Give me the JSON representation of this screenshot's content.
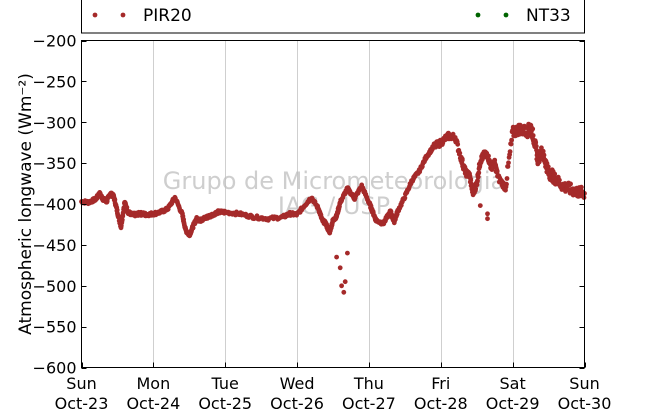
{
  "chart_data": {
    "type": "scatter",
    "ylabel": "Atmospheric longwave (Wm⁻²)",
    "ylim": [
      -600,
      -200
    ],
    "yticks": [
      -600,
      -550,
      -500,
      -450,
      -400,
      -350,
      -300,
      -250,
      -200
    ],
    "xlim": [
      0,
      7
    ],
    "xticks": [
      {
        "day": "Sun",
        "date": "Oct-23"
      },
      {
        "day": "Mon",
        "date": "Oct-24"
      },
      {
        "day": "Tue",
        "date": "Oct-25"
      },
      {
        "day": "Wed",
        "date": "Oct-26"
      },
      {
        "day": "Thu",
        "date": "Oct-27"
      },
      {
        "day": "Fri",
        "date": "Oct-28"
      },
      {
        "day": "Sat",
        "date": "Oct-29"
      },
      {
        "day": "Sun",
        "date": "Oct-30"
      }
    ],
    "grid": "vertical",
    "legend_position": "top",
    "watermark": [
      "Grupo de Micrometeorologia",
      "IAG / USP"
    ],
    "series": [
      {
        "name": "PIR20",
        "color": "#a52a2a",
        "x": [
          0.0,
          0.1,
          0.2,
          0.25,
          0.3,
          0.35,
          0.4,
          0.45,
          0.5,
          0.55,
          0.6,
          0.65,
          0.7,
          0.75,
          0.8,
          0.85,
          0.9,
          1.0,
          1.1,
          1.2,
          1.3,
          1.4,
          1.45,
          1.5,
          1.55,
          1.6,
          1.65,
          1.7,
          1.75,
          1.8,
          1.9,
          2.0,
          2.2,
          2.4,
          2.6,
          2.8,
          2.9,
          3.0,
          3.1,
          3.2,
          3.3,
          3.35,
          3.4,
          3.45,
          3.5,
          3.55,
          3.6,
          3.7,
          3.8,
          3.9,
          4.0,
          4.05,
          4.1,
          4.2,
          4.3,
          4.35,
          4.4,
          4.5,
          4.6,
          4.7,
          4.8,
          4.9,
          5.0,
          5.1,
          5.2,
          5.3,
          5.35,
          5.4,
          5.45,
          5.5,
          5.55,
          5.6,
          5.65,
          5.7,
          5.75,
          5.8,
          5.9,
          6.0,
          6.1,
          6.2,
          6.25,
          6.3,
          6.35,
          6.4,
          6.45,
          6.5,
          6.55,
          6.6,
          6.7,
          6.8,
          6.9,
          7.0
        ],
        "y": [
          -397,
          -398,
          -394,
          -387,
          -394,
          -397,
          -387,
          -391,
          -410,
          -428,
          -398,
          -410,
          -413,
          -413,
          -412,
          -412,
          -413,
          -412,
          -410,
          -406,
          -392,
          -412,
          -432,
          -438,
          -428,
          -418,
          -420,
          -418,
          -416,
          -414,
          -410,
          -410,
          -412,
          -416,
          -418,
          -416,
          -412,
          -413,
          -402,
          -392,
          -406,
          -420,
          -424,
          -435,
          -420,
          -415,
          -398,
          -381,
          -393,
          -378,
          -398,
          -409,
          -420,
          -424,
          -409,
          -422,
          -409,
          -391,
          -371,
          -360,
          -342,
          -330,
          -325,
          -317,
          -318,
          -350,
          -362,
          -365,
          -388,
          -375,
          -347,
          -340,
          -340,
          -355,
          -350,
          -368,
          -380,
          -313,
          -308,
          -312,
          -305,
          -322,
          -345,
          -337,
          -346,
          -362,
          -365,
          -370,
          -378,
          -382,
          -385,
          -387
        ],
        "outliers": [
          [
            3.55,
            -465
          ],
          [
            3.6,
            -478
          ],
          [
            3.62,
            -500
          ],
          [
            3.65,
            -508
          ],
          [
            3.67,
            -495
          ],
          [
            3.7,
            -460
          ],
          [
            5.55,
            -402
          ],
          [
            5.65,
            -412
          ],
          [
            5.65,
            -418
          ],
          [
            5.3,
            -345
          ]
        ]
      },
      {
        "name": "NT33",
        "color": "#006400",
        "x": [],
        "y": []
      }
    ]
  }
}
